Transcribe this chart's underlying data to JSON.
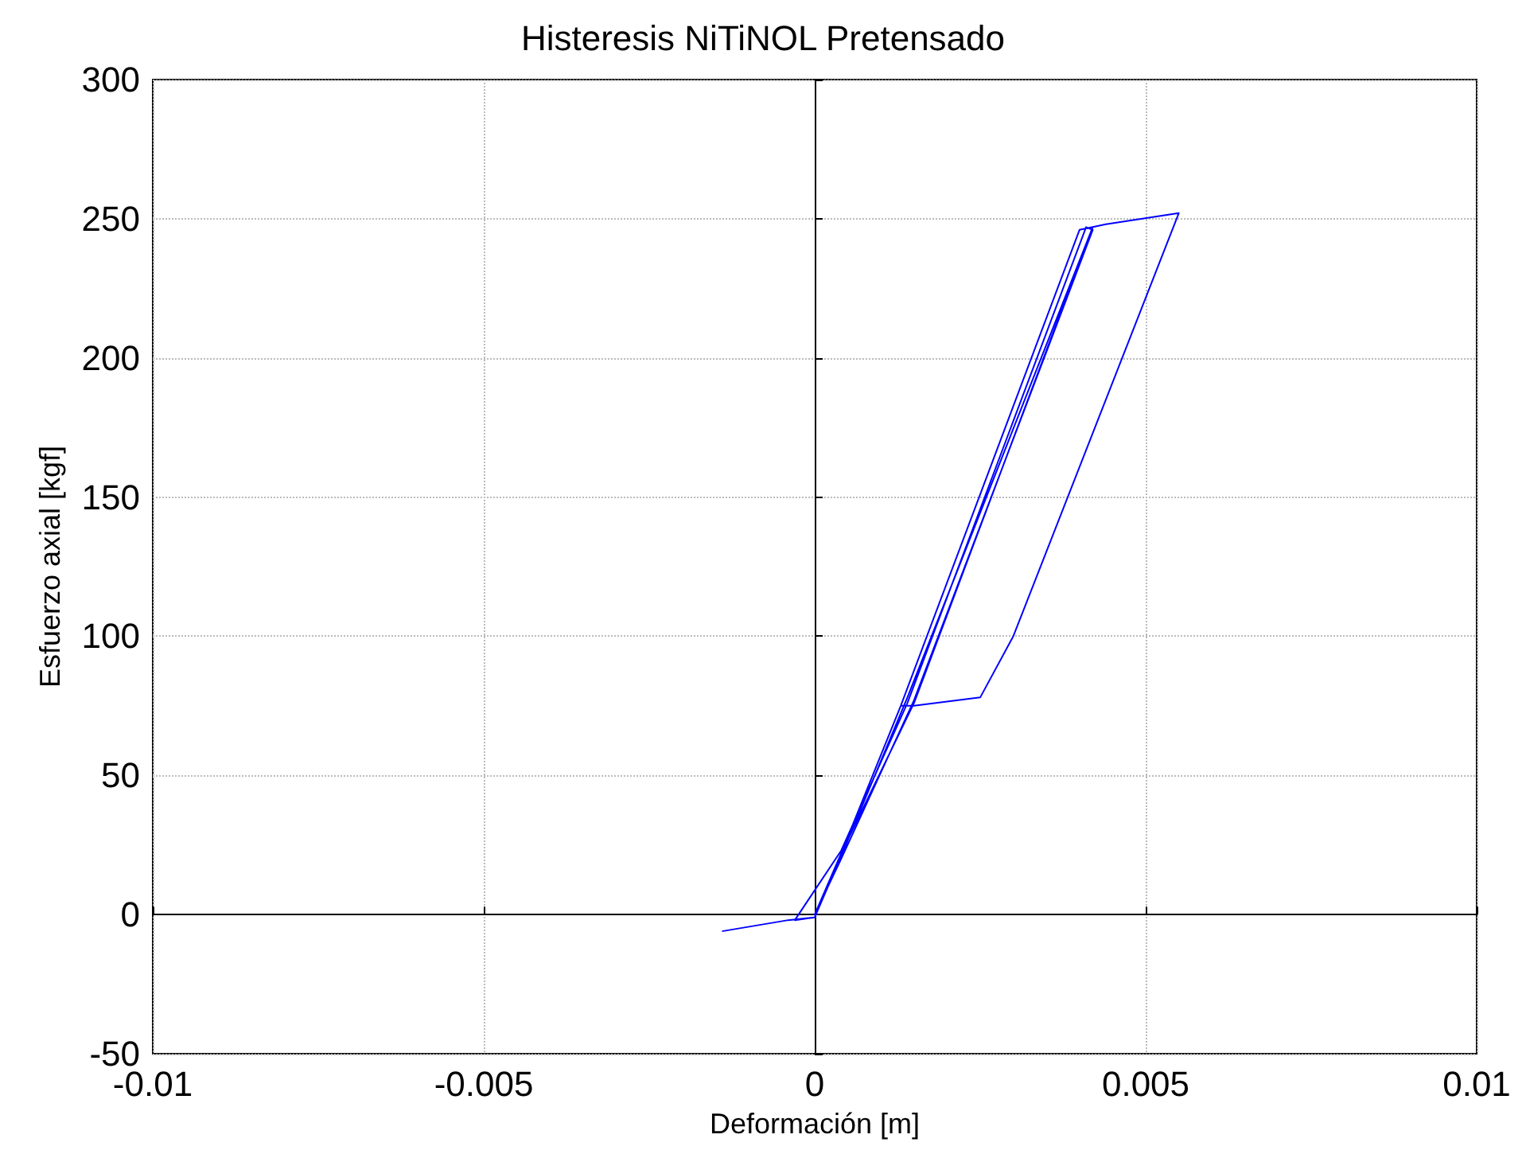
{
  "chart_data": {
    "type": "line",
    "title": "Histeresis NiTiNOL Pretensado",
    "xlabel": "Deformación [m]",
    "ylabel": "Esfuerzo axial [kgf]",
    "series": [
      {
        "color": "#0000ff",
        "x": [
          -0.0014,
          -0.0004,
          0,
          0.0004,
          0.0013,
          0.004,
          0.0042,
          0.0014,
          0.0004,
          0,
          -0.0003,
          0.0004,
          0.0014,
          0.0041,
          0.0042,
          0.0015,
          0.0004,
          0,
          0.0004,
          0.0015,
          0.0042,
          0.0044,
          0.0055,
          0.003,
          0.0025,
          0.0015,
          0.0013
        ],
        "values": [
          -6,
          -2,
          -1,
          22,
          75,
          246,
          247,
          78,
          21,
          -1,
          -2,
          23,
          76,
          247,
          246,
          77,
          20,
          0,
          22,
          76,
          247,
          248,
          252,
          100,
          78,
          75,
          75
        ]
      }
    ],
    "xlim": [
      -0.01,
      0.01
    ],
    "xticks": [
      -0.01,
      -0.005,
      0,
      0.005,
      0.01
    ],
    "ylim": [
      -50,
      300
    ],
    "yticks": [
      -50,
      0,
      50,
      100,
      150,
      200,
      250,
      300
    ],
    "grid": true,
    "marker": "none",
    "line_style": "solid"
  }
}
